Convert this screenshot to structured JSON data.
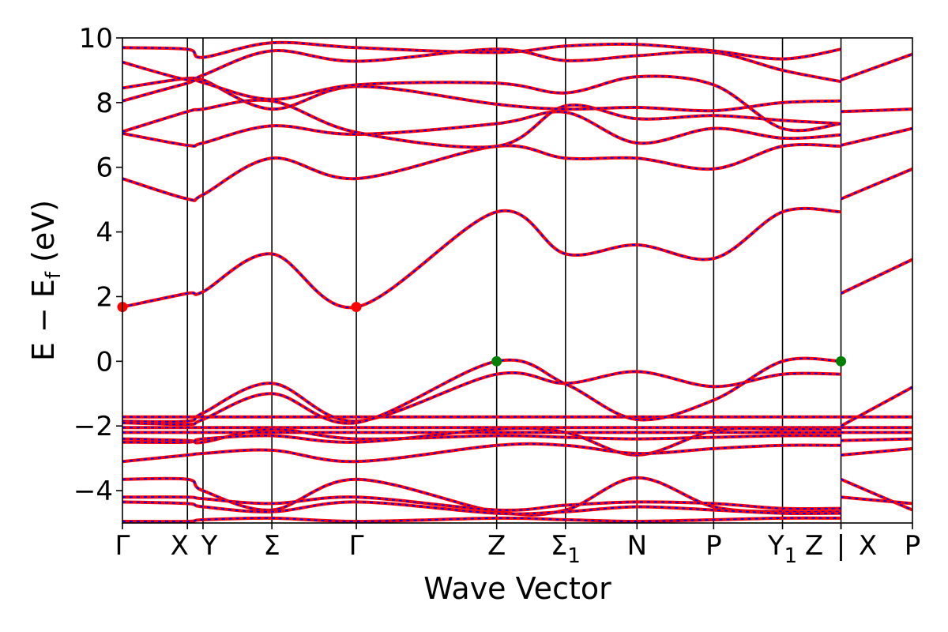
{
  "chart_data": {
    "type": "line",
    "xlabel": "Wave Vector",
    "ylabel": "E − E",
    "ylabel_sub": "f",
    "ylabel_unit": " (eV)",
    "ylim": [
      -5,
      10
    ],
    "yticks": [
      "10",
      "8",
      "6",
      "4",
      "2",
      "0",
      "−2",
      "−4"
    ],
    "ytick_values": [
      10,
      8,
      6,
      4,
      2,
      0,
      -2,
      -4
    ],
    "grid": false,
    "kpoints": [
      {
        "label": "Γ",
        "sub": "",
        "x": 0
      },
      {
        "label": "X",
        "sub": "",
        "x": 1.0
      },
      {
        "label": "Y",
        "sub": "",
        "x": 1.24
      },
      {
        "label": "Σ",
        "sub": "",
        "x": 2.3
      },
      {
        "label": "Γ",
        "sub": "",
        "x": 3.6
      },
      {
        "label": "Z",
        "sub": "",
        "x": 5.76
      },
      {
        "label": "Σ",
        "sub": "1",
        "x": 6.82
      },
      {
        "label": "N",
        "sub": "",
        "x": 7.92
      },
      {
        "label": "P",
        "sub": "",
        "x": 9.1
      },
      {
        "label": "Y",
        "sub": "1",
        "x": 10.16
      },
      {
        "label": "Z",
        "sub": "",
        "x": 11.06
      },
      {
        "label": "X",
        "sub": "",
        "x": 11.06
      },
      {
        "label": "P",
        "sub": "",
        "x": 12.16
      }
    ],
    "break_label": "|",
    "break_x": 11.06,
    "xlim": [
      0,
      12.16
    ],
    "line_colors": {
      "primary": "#ff0000",
      "dashed": "#0000ff"
    },
    "marker_colors": {
      "cbm": "#ff0000",
      "vbm": "#008000"
    },
    "cbm_points": [
      {
        "x": 0,
        "y": 1.68
      },
      {
        "x": 3.6,
        "y": 1.68
      }
    ],
    "vbm_points": [
      {
        "x": 5.76,
        "y": 0.0
      },
      {
        "x": 11.06,
        "y": 0.0
      }
    ],
    "bands": [
      {
        "x": [
          0,
          1.0,
          1.24,
          2.3,
          3.6,
          5.76,
          6.82,
          7.92,
          9.1,
          10.16,
          11.06
        ],
        "y": [
          1.68,
          2.1,
          2.15,
          3.32,
          1.68,
          4.62,
          3.32,
          3.6,
          3.18,
          4.62,
          4.62
        ]
      },
      {
        "x": [
          11.06,
          12.16
        ],
        "y": [
          2.1,
          3.15
        ]
      },
      {
        "x": [
          0,
          1.0,
          1.24,
          2.3,
          3.6,
          5.76,
          6.82,
          7.92,
          9.1,
          10.16,
          11.06
        ],
        "y": [
          5.65,
          5.02,
          5.15,
          6.28,
          5.65,
          6.65,
          6.28,
          6.28,
          5.95,
          6.65,
          6.65
        ]
      },
      {
        "x": [
          11.06,
          12.16
        ],
        "y": [
          5.02,
          5.95
        ]
      },
      {
        "x": [
          0,
          1.0,
          1.24,
          2.3,
          3.6,
          5.76,
          6.82,
          7.92,
          9.1,
          10.16,
          11.06
        ],
        "y": [
          7.05,
          6.68,
          6.75,
          7.28,
          7.02,
          7.35,
          7.7,
          6.75,
          7.2,
          6.9,
          7.0
        ]
      },
      {
        "x": [
          11.06,
          12.16
        ],
        "y": [
          6.68,
          7.2
        ]
      },
      {
        "x": [
          0,
          1.0,
          1.24,
          2.3,
          3.6,
          5.76,
          6.82,
          7.92,
          9.1,
          10.16,
          11.06
        ],
        "y": [
          7.1,
          7.72,
          7.8,
          8.05,
          7.08,
          6.65,
          7.9,
          7.5,
          7.6,
          7.45,
          7.35
        ]
      },
      {
        "x": [
          0,
          1.0,
          1.24,
          2.3,
          3.6,
          5.76,
          6.82,
          7.92,
          9.1,
          10.16,
          11.06
        ],
        "y": [
          8.05,
          8.6,
          8.7,
          7.8,
          8.5,
          7.95,
          7.8,
          7.85,
          7.75,
          8.0,
          8.05
        ]
      },
      {
        "x": [
          11.06,
          12.16
        ],
        "y": [
          7.72,
          7.8
        ]
      },
      {
        "x": [
          0,
          1.0,
          1.24,
          2.3,
          3.6,
          5.76,
          6.82,
          7.92,
          9.1,
          10.16,
          11.06
        ],
        "y": [
          8.45,
          8.75,
          8.62,
          8.1,
          8.55,
          8.6,
          8.3,
          8.8,
          8.55,
          7.2,
          7.35
        ]
      },
      {
        "x": [
          0,
          1.0,
          1.24,
          2.3,
          3.6,
          5.76,
          6.82,
          7.92,
          9.1,
          10.16,
          11.06
        ],
        "y": [
          9.25,
          8.7,
          8.85,
          9.6,
          9.28,
          9.65,
          9.3,
          9.45,
          9.55,
          9.0,
          8.65
        ]
      },
      {
        "x": [
          11.06,
          12.16
        ],
        "y": [
          8.7,
          9.5
        ]
      },
      {
        "x": [
          0,
          1.0,
          1.24,
          2.3,
          3.6,
          5.76,
          6.82,
          7.92,
          9.1,
          10.16,
          11.06
        ],
        "y": [
          9.7,
          9.65,
          9.4,
          9.85,
          9.7,
          9.55,
          9.75,
          9.8,
          9.6,
          9.35,
          9.65
        ]
      },
      {
        "x": [
          0,
          1.0,
          1.24,
          2.3,
          3.6,
          5.76,
          6.82,
          7.92,
          9.1,
          10.16,
          11.06
        ],
        "y": [
          -1.72,
          -1.72,
          -1.72,
          -1.72,
          -1.72,
          -1.72,
          -1.72,
          -1.72,
          -1.72,
          -1.72,
          -1.72
        ]
      },
      {
        "x": [
          11.06,
          12.16
        ],
        "y": [
          -1.72,
          -1.72
        ]
      },
      {
        "x": [
          0,
          1.0,
          1.24,
          2.3,
          3.6,
          5.76,
          6.82,
          7.92,
          9.1,
          10.16,
          11.06
        ],
        "y": [
          -1.85,
          -1.85,
          -1.6,
          -0.68,
          -1.85,
          -0.4,
          -0.68,
          -0.32,
          -0.78,
          -0.4,
          -0.4
        ]
      },
      {
        "x": [
          11.06,
          12.16
        ],
        "y": [
          -2.0,
          -0.8
        ]
      },
      {
        "x": [
          0,
          1.0,
          1.24,
          2.3,
          3.6,
          5.76,
          6.82,
          7.92,
          9.1,
          10.16,
          11.06
        ],
        "y": [
          -1.9,
          -1.95,
          -1.8,
          -1.0,
          -1.9,
          0.0,
          -0.7,
          -1.8,
          -1.2,
          0.0,
          0.0
        ]
      },
      {
        "x": [
          0,
          1.0,
          1.24,
          2.3,
          3.6,
          5.76,
          6.82,
          7.92,
          9.1,
          10.16,
          11.06
        ],
        "y": [
          -2.05,
          -2.05,
          -2.05,
          -2.05,
          -2.05,
          -2.05,
          -2.05,
          -2.05,
          -2.05,
          -2.05,
          -2.05
        ]
      },
      {
        "x": [
          11.06,
          12.16
        ],
        "y": [
          -2.05,
          -2.05
        ]
      },
      {
        "x": [
          0,
          1.0,
          1.24,
          2.3,
          3.6,
          5.76,
          6.82,
          7.92,
          9.1,
          10.16,
          11.06
        ],
        "y": [
          -2.2,
          -2.2,
          -2.2,
          -2.2,
          -2.2,
          -2.2,
          -2.2,
          -2.2,
          -2.2,
          -2.2,
          -2.2
        ]
      },
      {
        "x": [
          11.06,
          12.16
        ],
        "y": [
          -2.2,
          -2.2
        ]
      },
      {
        "x": [
          0,
          1.0,
          1.24,
          2.3,
          3.6,
          5.76,
          6.82,
          7.92,
          9.1,
          10.16,
          11.06
        ],
        "y": [
          -2.4,
          -2.45,
          -2.5,
          -2.1,
          -2.4,
          -2.3,
          -2.35,
          -2.4,
          -2.35,
          -2.3,
          -2.3
        ]
      },
      {
        "x": [
          11.06,
          12.16
        ],
        "y": [
          -2.45,
          -2.4
        ]
      },
      {
        "x": [
          0,
          1.0,
          1.24,
          2.3,
          3.6,
          5.76,
          6.82,
          7.92,
          9.1,
          10.16,
          11.06
        ],
        "y": [
          -2.5,
          -2.5,
          -2.4,
          -2.3,
          -2.5,
          -2.1,
          -2.2,
          -2.9,
          -2.15,
          -2.1,
          -2.1
        ]
      },
      {
        "x": [
          0,
          1.0,
          1.24,
          2.3,
          3.6,
          5.76,
          6.82,
          7.92,
          9.1,
          10.16,
          11.06
        ],
        "y": [
          -3.1,
          -2.9,
          -2.85,
          -2.75,
          -3.1,
          -2.6,
          -2.6,
          -2.85,
          -2.7,
          -2.6,
          -2.6
        ]
      },
      {
        "x": [
          11.06,
          12.16
        ],
        "y": [
          -2.9,
          -2.7
        ]
      },
      {
        "x": [
          0,
          1.0,
          1.24,
          2.3,
          3.6,
          5.76,
          6.82,
          7.92,
          9.1,
          10.16,
          11.06
        ],
        "y": [
          -3.65,
          -3.65,
          -4.0,
          -4.6,
          -3.65,
          -4.65,
          -4.6,
          -3.6,
          -4.5,
          -4.65,
          -4.65
        ]
      },
      {
        "x": [
          11.06,
          12.16
        ],
        "y": [
          -3.65,
          -4.6
        ]
      },
      {
        "x": [
          0,
          1.0,
          1.24,
          2.3,
          3.6,
          5.76,
          6.82,
          7.92,
          9.1,
          10.16,
          11.06
        ],
        "y": [
          -4.2,
          -4.2,
          -4.25,
          -4.4,
          -4.2,
          -4.6,
          -4.45,
          -4.35,
          -4.4,
          -4.55,
          -4.55
        ]
      },
      {
        "x": [
          11.06,
          12.16
        ],
        "y": [
          -4.2,
          -4.4
        ]
      },
      {
        "x": [
          0,
          1.0,
          1.24,
          2.3,
          3.6,
          5.76,
          6.82,
          7.92,
          9.1,
          10.16,
          11.06
        ],
        "y": [
          -4.35,
          -4.4,
          -4.5,
          -4.65,
          -4.35,
          -4.7,
          -4.65,
          -4.5,
          -4.6,
          -4.7,
          -4.7
        ]
      },
      {
        "x": [
          0,
          1.0,
          1.24,
          2.3,
          3.6,
          5.76,
          6.82,
          7.92,
          9.1,
          10.16,
          11.06
        ],
        "y": [
          -4.95,
          -4.95,
          -4.9,
          -4.85,
          -4.95,
          -4.85,
          -4.9,
          -4.95,
          -4.9,
          -4.85,
          -4.85
        ]
      }
    ]
  }
}
